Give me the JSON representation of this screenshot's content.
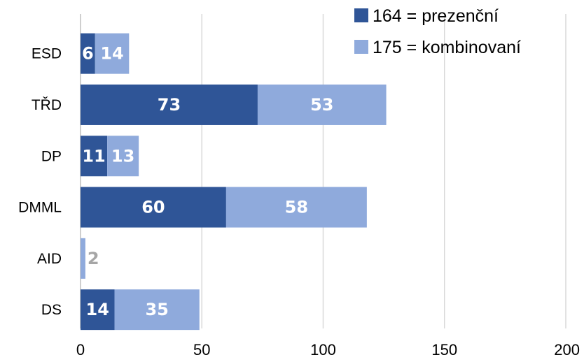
{
  "chart_data": {
    "type": "bar",
    "orientation": "horizontal",
    "stacked": true,
    "categories": [
      "ESD",
      "TŘD",
      "DP",
      "DMML",
      "AID",
      "DS"
    ],
    "series": [
      {
        "name": "164 = prezenční",
        "color": "#2f5597",
        "label_color": "#ffffff",
        "values": [
          6,
          73,
          11,
          60,
          0,
          14
        ]
      },
      {
        "name": "175 = kombinovaní",
        "color": "#8faadc",
        "label_color": "#ffffff",
        "values": [
          14,
          53,
          13,
          58,
          2,
          35
        ]
      }
    ],
    "data_labels": [
      [
        "6",
        "73",
        "11",
        "60",
        "",
        "14"
      ],
      [
        "14",
        "53",
        "13",
        "58",
        "2",
        "35"
      ]
    ],
    "small_label_color": "#a6a6a6",
    "xlim": [
      0,
      200
    ],
    "xticks": [
      0,
      50,
      100,
      150,
      200
    ],
    "xtick_labels": [
      "0",
      "50",
      "100",
      "150",
      "200"
    ],
    "grid": true,
    "legend_position": "top-right",
    "title": "",
    "xlabel": "",
    "ylabel": ""
  }
}
